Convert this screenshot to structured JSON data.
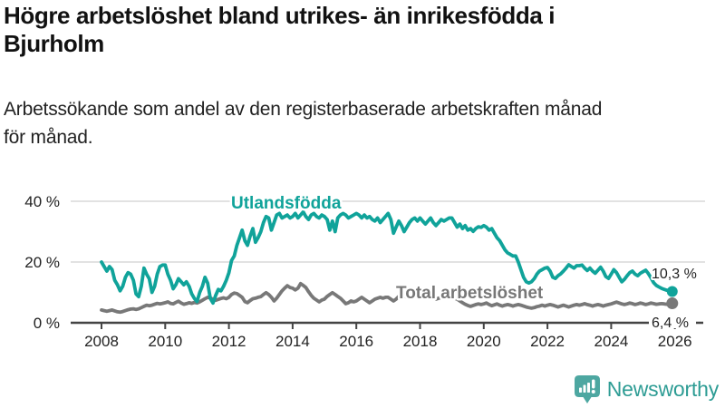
{
  "header": {
    "title_lines": [
      "Högre arbetslöshet bland utrikes- än inrikesfödda i",
      "Bjurholm"
    ],
    "subtitle_lines": [
      "Arbetssökande som andel av den registerbaserade arbetskraften månad",
      "för månad."
    ]
  },
  "chart_data": {
    "type": "line",
    "title": "Högre arbetslöshet bland utrikes- än inrikesfödda i Bjurholm",
    "subtitle": "Arbetssökande som andel av den registerbaserade arbetskraften månad för månad.",
    "x_start_year": 2008,
    "points_per_year": 12,
    "x_tick_years": [
      2008,
      2010,
      2012,
      2014,
      2016,
      2018,
      2020,
      2022,
      2024,
      2026
    ],
    "ylim": [
      0,
      44
    ],
    "y_ticks": [
      {
        "value": 0,
        "label": "0 %"
      },
      {
        "value": 20,
        "label": "20 %"
      },
      {
        "value": 40,
        "label": "40 %"
      }
    ],
    "grid": "horizontal",
    "legend": "inline-labels",
    "series": [
      {
        "name": "Utlandsfödda",
        "color": "#10a39a",
        "end_label": "10,3 %",
        "end_value": 10.3,
        "values": [
          20.0,
          18.5,
          17.0,
          18.5,
          17.5,
          14.0,
          12.5,
          10.5,
          12.0,
          15.0,
          16.5,
          16.0,
          14.0,
          9.5,
          8.6,
          12.0,
          18.0,
          16.0,
          14.5,
          10.0,
          12.0,
          16.0,
          18.5,
          19.0,
          19.0,
          16.0,
          14.0,
          11.2,
          12.5,
          14.5,
          13.5,
          12.5,
          13.5,
          12.0,
          9.5,
          8.0,
          7.0,
          10.0,
          12.0,
          15.0,
          13.0,
          8.0,
          6.5,
          9.0,
          11.0,
          10.5,
          12.0,
          14.0,
          16.5,
          20.5,
          22.0,
          25.5,
          28.0,
          30.5,
          27.0,
          25.5,
          28.5,
          31.0,
          26.5,
          28.0,
          30.0,
          33.0,
          35.0,
          34.5,
          30.5,
          33.0,
          35.5,
          36.0,
          34.5,
          35.0,
          35.5,
          34.5,
          35.0,
          36.0,
          34.5,
          35.5,
          36.5,
          35.0,
          34.0,
          35.5,
          36.0,
          35.0,
          34.5,
          35.5,
          35.0,
          34.0,
          30.5,
          33.5,
          30.0,
          34.5,
          35.5,
          36.0,
          35.5,
          34.5,
          35.0,
          35.5,
          36.0,
          35.5,
          34.5,
          35.5,
          34.5,
          35.0,
          34.0,
          33.5,
          34.5,
          33.0,
          34.0,
          35.0,
          36.0,
          34.0,
          29.5,
          31.5,
          33.5,
          32.0,
          30.0,
          31.5,
          33.0,
          34.0,
          34.5,
          33.5,
          34.5,
          33.5,
          32.5,
          33.5,
          34.5,
          33.0,
          32.0,
          33.0,
          34.0,
          33.5,
          34.0,
          34.5,
          34.5,
          33.0,
          31.5,
          32.5,
          31.0,
          32.0,
          30.5,
          31.0,
          30.1,
          31.0,
          31.6,
          31.4,
          32.0,
          31.5,
          30.5,
          31.0,
          29.5,
          28.0,
          27.0,
          25.5,
          24.0,
          23.0,
          22.5,
          22.0,
          22.0,
          20.0,
          17.5,
          15.0,
          13.5,
          13.1,
          13.5,
          14.5,
          16.0,
          17.0,
          17.5,
          18.0,
          18.2,
          17.0,
          15.0,
          14.6,
          15.5,
          16.1,
          17.0,
          18.0,
          19.1,
          18.5,
          18.0,
          18.8,
          18.8,
          19.0,
          18.0,
          17.2,
          18.0,
          17.0,
          16.3,
          17.3,
          18.3,
          17.0,
          15.2,
          14.6,
          16.0,
          17.5,
          16.5,
          15.0,
          13.5,
          14.3,
          15.5,
          16.5,
          17.0,
          16.0,
          15.5,
          16.3,
          16.8,
          17.3,
          16.2,
          14.8,
          13.2,
          12.3,
          11.8,
          11.3,
          11.0,
          10.7,
          10.5,
          10.3
        ]
      },
      {
        "name": "Total arbetslöshet",
        "color": "#787878",
        "end_label": "6,4 %",
        "end_value": 6.4,
        "values": [
          4.2,
          4.0,
          3.8,
          4.0,
          4.2,
          3.9,
          3.6,
          3.5,
          3.7,
          4.0,
          4.3,
          4.5,
          4.6,
          4.4,
          4.6,
          5.0,
          5.4,
          5.8,
          5.6,
          5.8,
          6.1,
          6.4,
          6.2,
          6.4,
          6.6,
          6.9,
          6.4,
          6.2,
          6.7,
          7.1,
          6.5,
          6.1,
          6.3,
          6.6,
          6.4,
          6.7,
          6.5,
          6.9,
          7.4,
          7.9,
          8.4,
          8.2,
          7.7,
          7.4,
          7.7,
          8.0,
          8.2,
          7.9,
          8.4,
          9.3,
          9.8,
          9.6,
          9.0,
          8.4,
          7.0,
          6.6,
          7.3,
          7.9,
          8.1,
          8.4,
          8.6,
          9.3,
          9.9,
          9.3,
          8.4,
          7.2,
          8.1,
          9.3,
          10.5,
          11.4,
          12.2,
          11.6,
          11.4,
          10.8,
          11.4,
          12.9,
          12.3,
          11.6,
          10.2,
          9.0,
          8.1,
          7.5,
          6.9,
          7.5,
          7.8,
          8.7,
          9.3,
          9.9,
          9.3,
          8.7,
          8.1,
          7.2,
          6.3,
          6.6,
          7.2,
          6.9,
          7.2,
          7.8,
          8.4,
          7.8,
          7.2,
          6.6,
          7.2,
          7.8,
          8.1,
          8.4,
          8.1,
          8.4,
          8.4,
          7.8,
          7.2,
          7.8,
          8.7,
          9.3,
          9.0,
          8.4,
          9.0,
          9.3,
          9.6,
          9.3,
          9.0,
          8.7,
          8.4,
          8.7,
          9.0,
          8.4,
          7.8,
          8.1,
          8.4,
          8.7,
          8.4,
          8.1,
          8.4,
          8.1,
          7.8,
          7.2,
          6.6,
          6.1,
          5.7,
          5.4,
          5.7,
          6.0,
          6.2,
          6.0,
          6.2,
          6.5,
          6.0,
          5.6,
          5.9,
          6.2,
          5.8,
          5.5,
          5.8,
          6.0,
          5.8,
          5.5,
          5.8,
          6.0,
          5.8,
          5.5,
          5.2,
          5.0,
          4.8,
          5.0,
          5.3,
          5.5,
          5.8,
          5.5,
          5.8,
          6.0,
          5.8,
          5.5,
          5.2,
          5.5,
          5.8,
          5.5,
          5.2,
          5.5,
          5.8,
          6.0,
          5.8,
          6.0,
          6.3,
          6.0,
          5.8,
          5.5,
          5.8,
          6.0,
          5.8,
          5.5,
          5.8,
          6.0,
          6.2,
          6.5,
          6.8,
          6.5,
          6.2,
          6.0,
          6.2,
          6.5,
          6.3,
          6.0,
          6.2,
          6.5,
          6.3,
          6.0,
          6.2,
          6.5,
          6.3,
          6.1,
          6.2,
          6.3,
          6.2,
          6.1,
          6.3,
          6.4
        ]
      }
    ]
  },
  "footer": {
    "brand": "Newsworthy",
    "brand_color": "#2d9c94",
    "icon_color": "#4da7a1",
    "logo_icon": "bar-chart-speech-bubble-icon"
  }
}
